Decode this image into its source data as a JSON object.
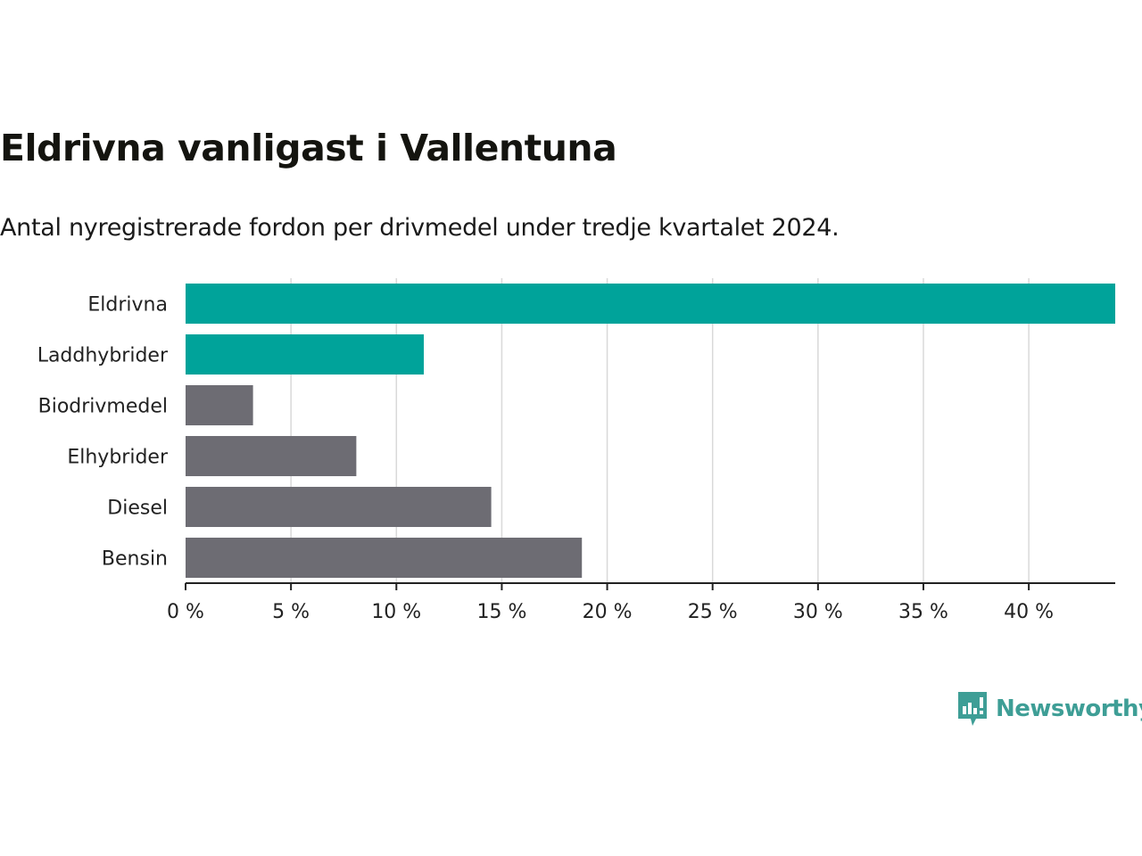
{
  "chart_data": {
    "type": "bar",
    "orientation": "horizontal",
    "title": "Eldrivna vanligast i Vallentuna",
    "subtitle": "Antal nyregistrerade fordon per drivmedel under tredje kvartalet 2024.",
    "categories": [
      "Eldrivna",
      "Laddhybrider",
      "Biodrivmedel",
      "Elhybrider",
      "Diesel",
      "Bensin"
    ],
    "values": [
      44.1,
      11.3,
      3.2,
      8.1,
      14.5,
      18.8
    ],
    "bar_colors": [
      "#00a39a",
      "#00a39a",
      "#6d6c73",
      "#6d6c73",
      "#6d6c73",
      "#6d6c73"
    ],
    "unit": "%",
    "xlim": [
      0,
      44.1
    ],
    "x_ticks": [
      0,
      5,
      10,
      15,
      20,
      25,
      30,
      35,
      40
    ],
    "x_tick_labels": [
      "0 %",
      "5 %",
      "10 %",
      "15 %",
      "20 %",
      "25 %",
      "30 %",
      "35 %",
      "40 %"
    ],
    "grid": true,
    "xlabel": "",
    "ylabel": ""
  },
  "brand": {
    "name": "Newsworthy",
    "logo_icon": "newsworthy-chart-icon",
    "color": "#3e9e96"
  },
  "colors": {
    "grid": "#d9d9d9",
    "axis": "#222222"
  }
}
